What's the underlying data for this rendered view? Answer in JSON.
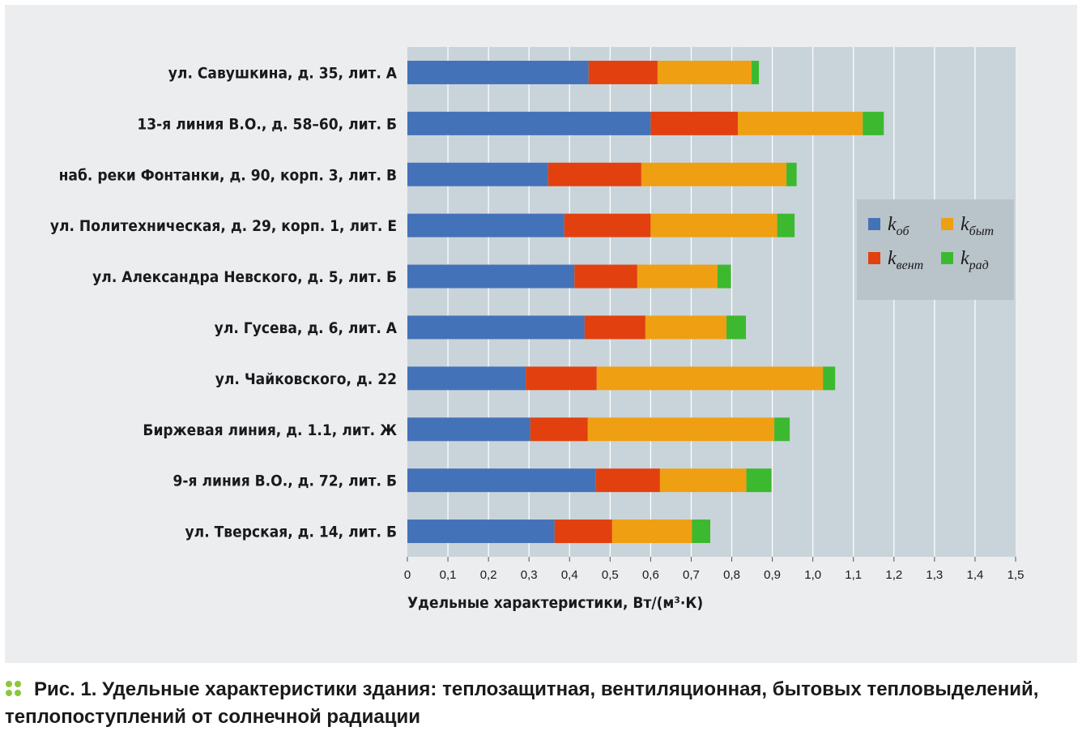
{
  "caption": {
    "prefix": "Рис. 1.",
    "text": "Удельные характеристики здания: теплозащитная, вентиляционная, бытовых тепловыделений, теплопоступлений от солнечной радиации"
  },
  "colors": {
    "panel_bg": "#ebedef",
    "plot_bg": "#c9d4da",
    "grid": "#ffffff",
    "caption_dots": "#8cc63f"
  },
  "chart_data": {
    "type": "bar",
    "orientation": "horizontal",
    "stacked": true,
    "title": "",
    "xlabel": "Удельные характеристики, Вт/(м³·К)",
    "ylabel": "",
    "xlim": [
      0,
      1.5
    ],
    "x_ticks": [
      "0",
      "0,1",
      "0,2",
      "0,3",
      "0,4",
      "0,5",
      "0,6",
      "0,7",
      "0,8",
      "0,9",
      "1,0",
      "1,1",
      "1,2",
      "1,3",
      "1,4",
      "1,5"
    ],
    "grid": true,
    "legend_position": "right",
    "categories": [
      "ул. Савушкина, д. 35, лит. А",
      "13-я линия В.О., д. 58–60, лит. Б",
      "наб. реки Фонтанки, д. 90, корп. 3, лит. В",
      "ул. Политехническая, д. 29, корп. 1, лит. Е",
      "ул. Александра Невского, д. 5, лит. Б",
      "ул. Гусева, д. 6, лит. А",
      "ул. Чайковского, д. 22",
      "Биржевая линия, д. 1.1, лит. Ж",
      "9-я линия В.О., д. 72, лит. Б",
      "ул. Тверская, д. 14, лит. Б"
    ],
    "series": [
      {
        "symbol": "k",
        "sub": "об",
        "color": "#4472b8",
        "values": [
          0.447,
          0.6,
          0.347,
          0.387,
          0.412,
          0.437,
          0.292,
          0.303,
          0.465,
          0.363
        ]
      },
      {
        "symbol": "k",
        "sub": "вент",
        "color": "#e2400e",
        "values": [
          0.17,
          0.215,
          0.23,
          0.213,
          0.155,
          0.15,
          0.175,
          0.142,
          0.158,
          0.142
        ]
      },
      {
        "symbol": "k",
        "sub": "быт",
        "color": "#efa012",
        "values": [
          0.232,
          0.308,
          0.358,
          0.312,
          0.198,
          0.2,
          0.558,
          0.46,
          0.213,
          0.197
        ]
      },
      {
        "symbol": "k",
        "sub": "рад",
        "color": "#3cb92e",
        "values": [
          0.018,
          0.052,
          0.025,
          0.043,
          0.033,
          0.048,
          0.03,
          0.038,
          0.062,
          0.045
        ]
      }
    ]
  }
}
